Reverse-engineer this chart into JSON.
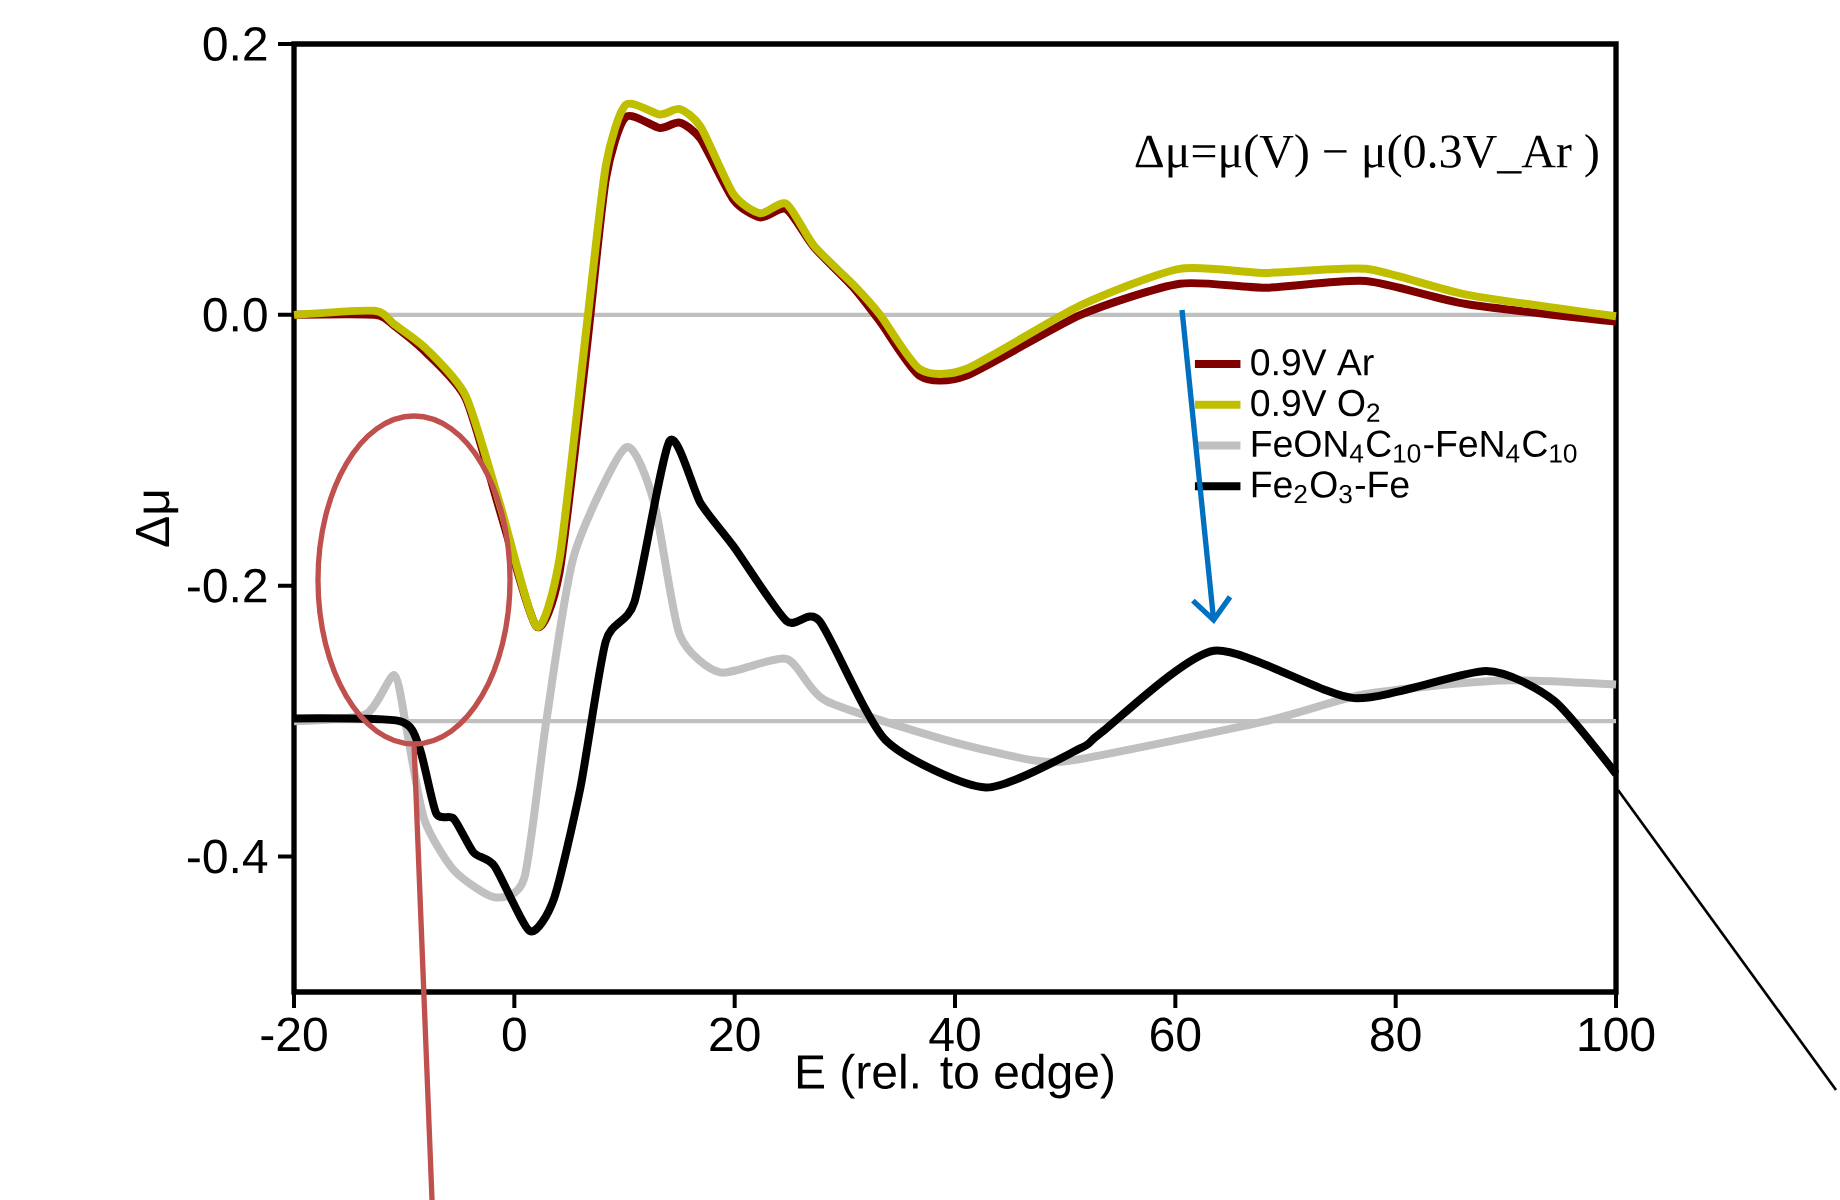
{
  "chart_data": {
    "type": "line",
    "xlabel": "E (rel. to edge)",
    "ylabel": "Δμ",
    "xlim": [
      -20,
      100
    ],
    "ylim": [
      -0.5,
      0.2
    ],
    "xticks": [
      -20,
      0,
      20,
      40,
      60,
      80,
      100
    ],
    "yticks": [
      {
        "value": -0.4,
        "label": "-0.4"
      },
      {
        "value": -0.2,
        "label": "-0.2"
      },
      {
        "value": 0,
        "label": "0.0"
      },
      {
        "value": 0.2,
        "label": "0.2"
      }
    ],
    "legend": "right",
    "grid": false,
    "annotations": [
      "Δμ=μ(V) − μ(0.3V_Ar )"
    ],
    "ref_lines": [
      {
        "axis": "y",
        "value": 0,
        "color": "#c0c0c0"
      },
      {
        "axis": "y",
        "value": -0.3,
        "color": "#c0c0c0"
      }
    ],
    "series": [
      {
        "name": "0.9V Ar",
        "color": "#800000",
        "x": [
          -20,
          -12.7,
          -10.9,
          -8,
          -4.4,
          -1.3,
          2,
          4.1,
          6.5,
          8.3,
          10.1,
          13.2,
          15,
          16.9,
          19.9,
          22.3,
          24.7,
          27.2,
          30.8,
          33.2,
          36.8,
          41,
          51.4,
          60.4,
          68.2,
          77.3,
          86.4,
          100
        ],
        "values": [
          0,
          0.0,
          -0.008,
          -0.028,
          -0.062,
          -0.145,
          -0.23,
          -0.19,
          -0.03,
          0.1,
          0.146,
          0.138,
          0.142,
          0.13,
          0.085,
          0.072,
          0.078,
          0.05,
          0.02,
          -0.005,
          -0.045,
          -0.045,
          0.0,
          0.023,
          0.02,
          0.025,
          0.008,
          -0.005
        ]
      },
      {
        "name": "0.9V O$_{2}$",
        "color": "#bfbf00",
        "x": [
          -20,
          -12.7,
          -10.9,
          -8,
          -4.4,
          -1.3,
          2,
          4.1,
          6.5,
          8.3,
          10.1,
          13.2,
          15,
          16.9,
          19.9,
          22.3,
          24.7,
          27.2,
          30.8,
          33.2,
          36.8,
          41,
          51.4,
          60.4,
          68.2,
          77.3,
          86.4,
          100
        ],
        "values": [
          0,
          0.003,
          -0.007,
          -0.025,
          -0.06,
          -0.14,
          -0.23,
          -0.18,
          -0.013,
          0.11,
          0.155,
          0.148,
          0.152,
          0.139,
          0.089,
          0.075,
          0.082,
          0.051,
          0.022,
          0,
          -0.04,
          -0.04,
          0.007,
          0.034,
          0.031,
          0.034,
          0.015,
          -0.001
        ]
      },
      {
        "name": "FeON$_{4}$C$_{10}$-FeN$_{4}$C$_{10}$",
        "color": "#c0c0c0",
        "x": [
          -20,
          -13.5,
          -10.9,
          -9.8,
          -8.2,
          -5.5,
          -1.8,
          0.9,
          2.9,
          5.4,
          10.1,
          12.7,
          15,
          18.7,
          24.7,
          28.3,
          39.2,
          47.2,
          51.4,
          68.2,
          77.3,
          89.5,
          100
        ],
        "values": [
          -0.3,
          -0.295,
          -0.266,
          -0.305,
          -0.372,
          -0.41,
          -0.43,
          -0.416,
          -0.3,
          -0.178,
          -0.098,
          -0.139,
          -0.236,
          -0.264,
          -0.254,
          -0.285,
          -0.314,
          -0.329,
          -0.328,
          -0.3,
          -0.28,
          -0.27,
          -0.273
        ]
      },
      {
        "name": "Fe$_{2}$O$_{3}$-Fe",
        "color": "#000000",
        "x": [
          -20,
          -10.4,
          -8.6,
          -7.1,
          -5.5,
          -3.7,
          -1.8,
          1.4,
          3.6,
          6,
          8.3,
          10.9,
          14.1,
          16.9,
          19.9,
          24.7,
          27.7,
          33.7,
          42.8,
          51.4,
          53.2,
          63.5,
          76.2,
          88.2,
          94.4,
          100
        ],
        "values": [
          -0.298,
          -0.3,
          -0.32,
          -0.368,
          -0.372,
          -0.397,
          -0.407,
          -0.455,
          -0.431,
          -0.349,
          -0.241,
          -0.212,
          -0.093,
          -0.139,
          -0.171,
          -0.226,
          -0.226,
          -0.314,
          -0.349,
          -0.32,
          -0.309,
          -0.248,
          -0.283,
          -0.263,
          -0.285,
          -0.339
        ]
      }
    ]
  }
}
